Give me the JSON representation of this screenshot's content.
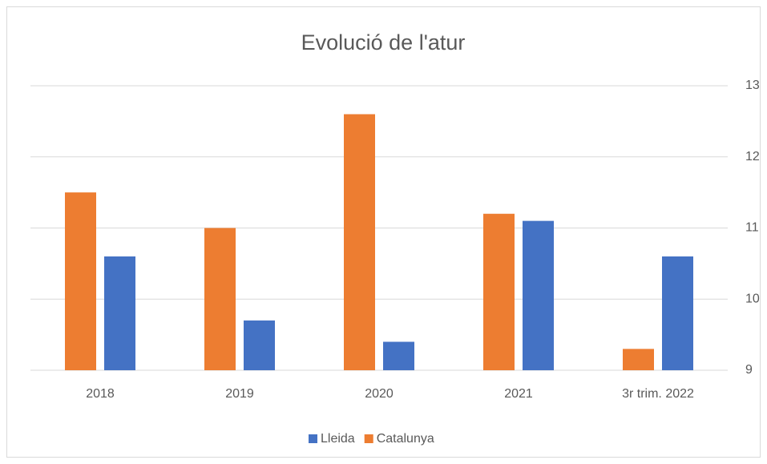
{
  "chart_data": {
    "type": "bar",
    "title": "Evolució de l'atur",
    "categories": [
      "2018",
      "2019",
      "2020",
      "2021",
      "3r trim. 2022"
    ],
    "series": [
      {
        "name": "Lleida",
        "color": "#4472c4",
        "values": [
          10.6,
          9.7,
          9.4,
          11.1,
          10.6
        ]
      },
      {
        "name": "Catalunya",
        "color": "#ed7d31",
        "values": [
          11.5,
          11.0,
          12.6,
          11.2,
          9.3
        ]
      }
    ],
    "ylim": [
      9,
      13
    ],
    "yticks": [
      9,
      10,
      11,
      12,
      13
    ],
    "grid": true,
    "y_axis_side": "right",
    "legend": "bottom"
  }
}
